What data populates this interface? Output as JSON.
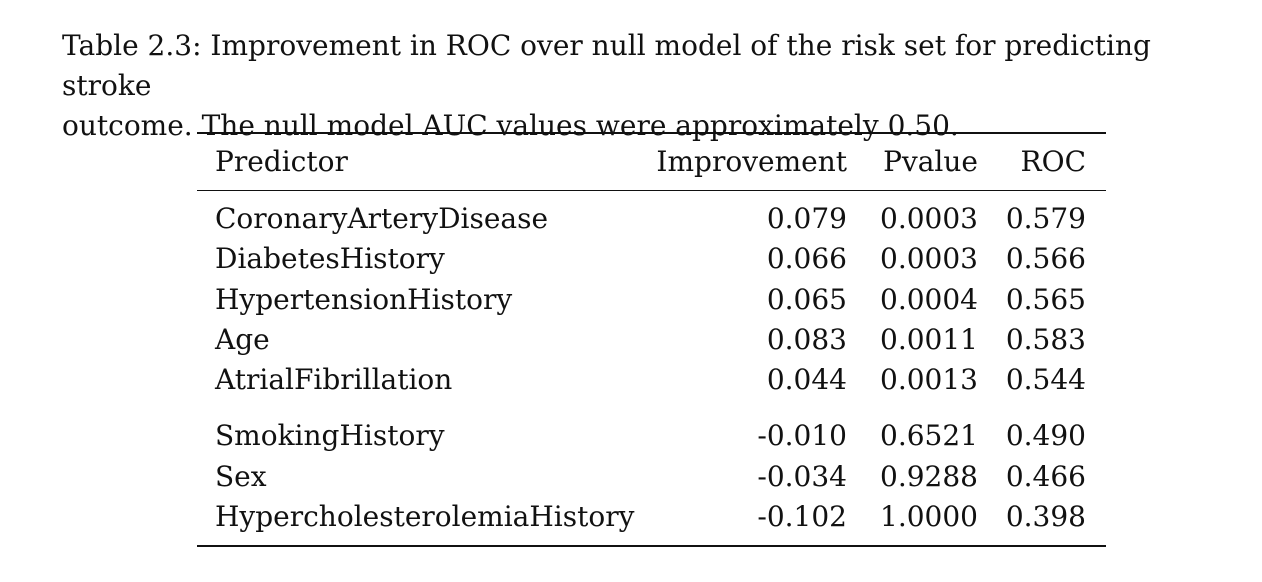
{
  "caption": {
    "label": "Table 2.3:",
    "line1": "Improvement in ROC over null model of the risk set for predicting stroke",
    "line2": "outcome. The null model AUC values were approximately 0.50."
  },
  "table": {
    "headers": [
      "Predictor",
      "Improvement",
      "Pvalue",
      "ROC"
    ],
    "group1": [
      {
        "predictor": "CoronaryArteryDisease",
        "improvement": "0.079",
        "pvalue": "0.0003",
        "roc": "0.579"
      },
      {
        "predictor": "DiabetesHistory",
        "improvement": "0.066",
        "pvalue": "0.0003",
        "roc": "0.566"
      },
      {
        "predictor": "HypertensionHistory",
        "improvement": "0.065",
        "pvalue": "0.0004",
        "roc": "0.565"
      },
      {
        "predictor": "Age",
        "improvement": "0.083",
        "pvalue": "0.0011",
        "roc": "0.583"
      },
      {
        "predictor": "AtrialFibrillation",
        "improvement": "0.044",
        "pvalue": "0.0013",
        "roc": "0.544"
      }
    ],
    "group2": [
      {
        "predictor": "SmokingHistory",
        "improvement": "-0.010",
        "pvalue": "0.6521",
        "roc": "0.490"
      },
      {
        "predictor": "Sex",
        "improvement": "-0.034",
        "pvalue": "0.9288",
        "roc": "0.466"
      },
      {
        "predictor": "HypercholesterolemiaHistory",
        "improvement": "-0.102",
        "pvalue": "1.0000",
        "roc": "0.398"
      }
    ]
  }
}
